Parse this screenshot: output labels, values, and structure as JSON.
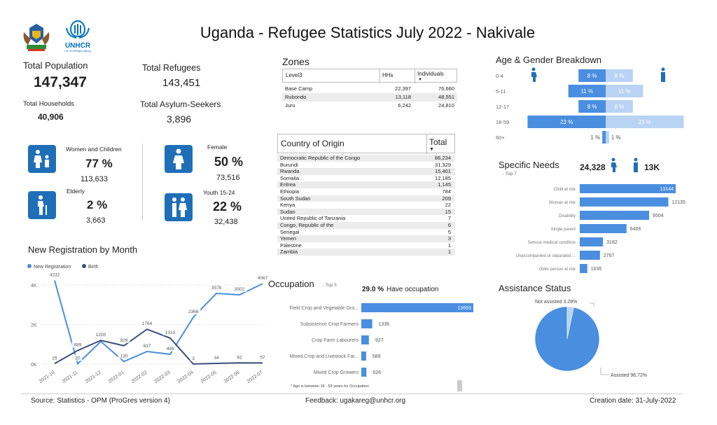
{
  "header": {
    "title": "Uganda - Refugee Statistics July 2022 - Nakivale",
    "unhcr_logo_text": "UNHCR",
    "unhcr_logo_subtext": "The UN Refugee Agency"
  },
  "kpis": {
    "total_population_label": "Total Population",
    "total_population": "147,347",
    "total_refugees_label": "Total Refugees",
    "total_refugees": "143,451",
    "total_households_label": "Total Households",
    "total_households": "40,906",
    "total_asylum_label": "Total Asylum-Seekers",
    "total_asylum": "3,896"
  },
  "demographics": {
    "women_children_label": "Women and Children",
    "women_children_pct": "77 %",
    "women_children_count": "113,633",
    "elderly_label": "Elderly",
    "elderly_pct": "2 %",
    "elderly_count": "3,663",
    "female_label": "Female",
    "female_pct": "50 %",
    "female_count": "73,516",
    "youth_label": "Youth 15-24",
    "youth_pct": "22 %",
    "youth_count": "32,438"
  },
  "zones": {
    "title": "Zones",
    "headers": [
      "Level3",
      "HHs",
      "Individuals"
    ],
    "rows": [
      [
        "Base Camp",
        "22,397",
        "76,660"
      ],
      [
        "Rubondo",
        "13,118",
        "48,551"
      ],
      [
        "Juru",
        "6,242",
        "24,810"
      ]
    ]
  },
  "country": {
    "title": "Country of Origin",
    "total_label": "Total",
    "rows": [
      [
        "Democratic Republic of the Congo",
        "86,234"
      ],
      [
        "Burundi",
        "31,329"
      ],
      [
        "Rwanda",
        "15,401"
      ],
      [
        "Somalia",
        "12,185"
      ],
      [
        "Eritrea",
        "1,145"
      ],
      [
        "Ethiopia",
        "784"
      ],
      [
        "South Sudan",
        "209"
      ],
      [
        "Kenya",
        "22"
      ],
      [
        "Sudan",
        "15"
      ],
      [
        "United Republic of Tanzania",
        "7"
      ],
      [
        "Congo, Republic of the",
        "6"
      ],
      [
        "Senegal",
        "5"
      ],
      [
        "Yemen",
        "3"
      ],
      [
        "Palestine",
        "1"
      ],
      [
        "Zambia",
        "1"
      ]
    ]
  },
  "age_gender": {
    "title": "Age & Gender Breakdown"
  },
  "specific_needs": {
    "title": "Specific Needs",
    "subtitle": "- Top 7",
    "female_total": "24,328",
    "male_total": "13K"
  },
  "assistance": {
    "title": "Assistance Status"
  },
  "registration": {
    "title": "New Registration by Month"
  },
  "occupation": {
    "title": "Occupation",
    "subtitle": "- Top 5",
    "have_occ_pct": "29.0 %",
    "have_occ_label": "Have occupation",
    "note": "* Age is between 18 - 59 years for Occupation"
  },
  "footer": {
    "source": "Source: Statistics - OPM (ProGres version 4)",
    "feedback": "Feedback: ugakareg@unhcr.org",
    "creation": "Creation date: 31-July-2022"
  },
  "colors": {
    "primary": "#1f6fb8",
    "bar": "#4a8ee0",
    "light": "#b8d3f3",
    "dark": "#3d4f7d"
  },
  "chart_data": [
    {
      "type": "bar",
      "name": "age_gender",
      "categories": [
        "0-4",
        "5-11",
        "12-17",
        "18-59",
        "60+"
      ],
      "series": [
        {
          "name": "Female",
          "values": [
            8,
            11,
            8,
            23,
            1
          ],
          "labels": [
            "8 %",
            "11 %",
            "8 %",
            "23 %",
            "1 %"
          ]
        },
        {
          "name": "Male",
          "values": [
            8,
            11,
            8,
            23,
            1
          ],
          "labels": [
            "8 %",
            "11 %",
            "8 %",
            "23 %",
            "1 %"
          ]
        }
      ]
    },
    {
      "type": "bar",
      "name": "specific_needs",
      "categories": [
        "Child at risk",
        "Woman at risk",
        "Disability",
        "Single parent",
        "Serious medical condition",
        "Unaccompanied or separated ...",
        "Older person at risk"
      ],
      "values": [
        13144,
        12135,
        9504,
        6406,
        3182,
        2767,
        1035
      ],
      "labels": [
        "13144",
        "12135",
        "9504",
        "6406",
        "3182",
        "2767",
        "1035"
      ]
    },
    {
      "type": "pie",
      "name": "assistance_status",
      "categories": [
        "Not assisted",
        "Assisted"
      ],
      "values": [
        3.28,
        96.72
      ],
      "labels": [
        "Not assisted 3.28%",
        "Assisted 96.72%"
      ]
    },
    {
      "type": "bar",
      "name": "occupation",
      "categories": [
        "Field Crop and Vegetable Gro...",
        "Subsistence Crop Farmers",
        "Crop Farm Labourers",
        "Mixed Crop and Livestock Far...",
        "Mixed Crop Growers"
      ],
      "values": [
        13693,
        1336,
        927,
        589,
        626
      ],
      "labels": [
        "13693",
        "1336",
        "927",
        "589",
        "626"
      ]
    },
    {
      "type": "line",
      "name": "new_registration_by_month",
      "x": [
        "2021-10",
        "2021-11",
        "2021-12",
        "2022-01",
        "2022-02",
        "2022-03",
        "2022-04",
        "2022-05",
        "2022-06",
        "2022-07"
      ],
      "yticks": [
        "0K",
        "2K",
        "4K"
      ],
      "ylim": [
        0,
        4500
      ],
      "legend": [
        "New Registration",
        "Birth"
      ],
      "series": [
        {
          "name": "New Registration",
          "values": [
            4232,
            20,
            1142,
            130,
            637,
            495,
            2366,
            3578,
            3502,
            4067
          ],
          "labels": [
            "4232",
            "20",
            "1142",
            "130",
            "637",
            "495",
            "2366",
            "3578",
            "3502",
            "4067"
          ]
        },
        {
          "name": "Birth",
          "values": [
            25,
            689,
            1200,
            929,
            1764,
            1315,
            3,
            34,
            62,
            57
          ],
          "labels": [
            "25",
            "689",
            "1200",
            "929",
            "1764",
            "1315",
            "3",
            "34",
            "62",
            "57"
          ]
        }
      ]
    }
  ]
}
